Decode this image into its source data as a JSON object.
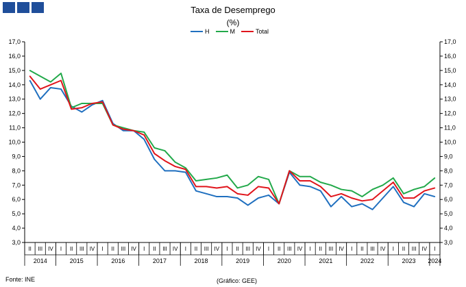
{
  "header": {
    "title": "Taxa de Desemprego",
    "subtitle": "(%)"
  },
  "footer": {
    "source": "Fonte: INE",
    "credit": "(Gráfico: GEE)"
  },
  "chart_data": {
    "type": "line",
    "title": "Taxa de Desemprego",
    "subtitle": "(%)",
    "y_ticks": [
      "3,0",
      "4,0",
      "5,0",
      "6,0",
      "7,0",
      "8,0",
      "9,0",
      "10,0",
      "11,0",
      "12,0",
      "13,0",
      "14,0",
      "15,0",
      "16,0",
      "17,0"
    ],
    "ylim": [
      3,
      17
    ],
    "grid": false,
    "legend_position": "top-center",
    "x": [
      "2014 II",
      "2014 III",
      "2014 IV",
      "2015 I",
      "2015 II",
      "2015 III",
      "2015 IV",
      "2016 I",
      "2016 II",
      "2016 III",
      "2016 IV",
      "2017 I",
      "2017 II",
      "2017 III",
      "2017 IV",
      "2018 I",
      "2018 II",
      "2018 III",
      "2018 IV",
      "2019 I",
      "2019 II",
      "2019 III",
      "2019 IV",
      "2020 I",
      "2020 II",
      "2020 III",
      "2020 IV",
      "2021 I",
      "2021 II",
      "2021 III",
      "2021 IV",
      "2022 I",
      "2022 II",
      "2022 III",
      "2022 IV",
      "2023 I",
      "2023 II",
      "2023 III",
      "2023 IV",
      "2024 I"
    ],
    "quarter_labels": [
      "II",
      "III",
      "IV",
      "I",
      "II",
      "III",
      "IV",
      "I",
      "II",
      "III",
      "IV",
      "I",
      "II",
      "III",
      "IV",
      "I",
      "II",
      "III",
      "IV",
      "I",
      "II",
      "III",
      "IV",
      "I",
      "II",
      "III",
      "IV",
      "I",
      "II",
      "III",
      "IV",
      "I",
      "II",
      "III",
      "IV",
      "I",
      "II",
      "III",
      "IV",
      "I"
    ],
    "year_labels": [
      "2014",
      "2015",
      "2016",
      "2017",
      "2018",
      "2019",
      "2020",
      "2021",
      "2022",
      "2023",
      "2024"
    ],
    "series": [
      {
        "name": "H",
        "color": "#1f6fbf",
        "values": [
          14.3,
          13.0,
          13.8,
          13.7,
          12.5,
          12.1,
          12.6,
          12.9,
          11.3,
          10.8,
          10.8,
          10.2,
          8.8,
          8.0,
          8.0,
          7.9,
          6.6,
          6.4,
          6.2,
          6.2,
          6.1,
          5.6,
          6.1,
          6.3,
          5.7,
          7.9,
          7.0,
          6.9,
          6.6,
          5.5,
          6.2,
          5.5,
          5.7,
          5.3,
          6.1,
          6.9,
          5.8,
          5.5,
          6.4,
          6.2
        ]
      },
      {
        "name": "M",
        "color": "#22a94a",
        "values": [
          15.0,
          14.6,
          14.2,
          14.8,
          12.4,
          12.7,
          12.7,
          12.7,
          11.2,
          11.0,
          10.8,
          10.7,
          9.6,
          9.4,
          8.6,
          8.2,
          7.3,
          7.4,
          7.5,
          7.7,
          6.8,
          7.0,
          7.6,
          7.4,
          5.7,
          8.0,
          7.6,
          7.6,
          7.2,
          7.0,
          6.7,
          6.6,
          6.2,
          6.7,
          7.0,
          7.5,
          6.4,
          6.7,
          6.9,
          7.5
        ]
      },
      {
        "name": "Total",
        "color": "#e0141b",
        "values": [
          14.6,
          13.7,
          14.0,
          14.3,
          12.3,
          12.4,
          12.7,
          12.8,
          11.2,
          10.9,
          10.8,
          10.5,
          9.2,
          8.7,
          8.3,
          8.1,
          6.9,
          6.9,
          6.8,
          6.9,
          6.4,
          6.3,
          6.9,
          6.8,
          5.7,
          8.0,
          7.3,
          7.3,
          6.9,
          6.2,
          6.4,
          6.1,
          5.9,
          6.0,
          6.6,
          7.2,
          6.1,
          6.1,
          6.6,
          6.8
        ]
      }
    ]
  }
}
